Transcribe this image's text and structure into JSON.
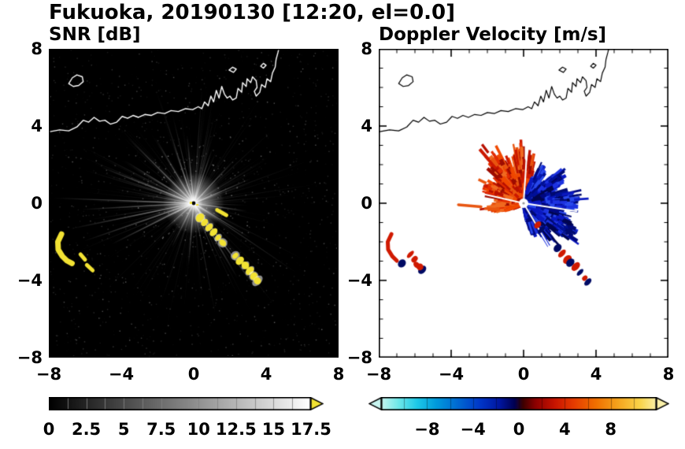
{
  "figure_title": "Fukuoka, 20190130 [12:20, el=0.0]",
  "panels": {
    "snr": {
      "title": "SNR [dB]",
      "x_tick_labels": [
        "−8",
        "−4",
        "0",
        "4",
        "8"
      ],
      "y_tick_labels": [
        "8",
        "4",
        "0",
        "−4",
        "−8"
      ],
      "colorbar_tick_labels": [
        "0",
        "2.5",
        "5",
        "7.5",
        "10",
        "12.5",
        "15",
        "17.5"
      ]
    },
    "doppler": {
      "title": "Doppler Velocity [m/s]",
      "x_tick_labels": [
        "−8",
        "−4",
        "0",
        "4",
        "8"
      ],
      "y_tick_labels": [
        "8",
        "4",
        "0",
        "−4",
        "−8"
      ],
      "colorbar_tick_labels": [
        "−8",
        "−4",
        "0",
        "4",
        "8"
      ]
    }
  },
  "chart_data": [
    {
      "type": "heatmap",
      "id": "snr",
      "title": "SNR [dB]",
      "xlabel": "",
      "ylabel": "",
      "xlim": [
        -8,
        8
      ],
      "ylim": [
        -8,
        8
      ],
      "xticks": [
        -8,
        -4,
        0,
        4,
        8
      ],
      "yticks": [
        -8,
        -4,
        0,
        4,
        8
      ],
      "minor_tick_step": 1,
      "background": "#000000",
      "coast_color": "#ffffff",
      "clutter_color": "#f2e233",
      "colorbar": {
        "min": 0,
        "max": 17.5,
        "ticks": [
          0,
          2.5,
          5,
          7.5,
          10,
          12.5,
          15,
          17.5
        ],
        "type": "grayscale",
        "start_color": "#000000",
        "end_color": "#ffffff",
        "over_arrow_color": "#f2e233",
        "segment_step": 1.25
      },
      "radar_center": [
        0,
        0
      ],
      "beam_fan": {
        "n_rays": 300,
        "len_min": 1.2,
        "len_max": 7.4,
        "alpha_min": 0.05,
        "alpha_max": 0.3,
        "sparse_sector": [
          215,
          275
        ],
        "bright_rays": [
          [
            178,
            7.8
          ],
          [
            183,
            6.2
          ],
          [
            191,
            7.0
          ],
          [
            198,
            6.4
          ],
          [
            205,
            5.0
          ],
          [
            160,
            5.4
          ],
          [
            150,
            4.4
          ],
          [
            137,
            5.0
          ],
          [
            122,
            4.0
          ],
          [
            110,
            3.4
          ],
          [
            96,
            3.6
          ],
          [
            70,
            3.0
          ],
          [
            45,
            3.2
          ],
          [
            22,
            3.4
          ],
          [
            -8,
            3.0
          ],
          [
            -30,
            3.6
          ],
          [
            -52,
            5.8
          ],
          [
            -58,
            4.6
          ],
          [
            -95,
            3.2
          ],
          [
            -118,
            2.6
          ],
          [
            -140,
            2.2
          ]
        ]
      },
      "yellow_arc": [
        [
          -7.3,
          -1.6
        ],
        [
          -7.5,
          -2.0
        ],
        [
          -7.48,
          -2.4
        ],
        [
          -7.25,
          -2.75
        ],
        [
          -7.0,
          -2.98
        ],
        [
          -6.72,
          -3.12
        ]
      ],
      "yellow_dashes": [
        [
          [
            -6.25,
            -2.65
          ],
          [
            -6.0,
            -2.92
          ]
        ],
        [
          [
            -5.9,
            -3.2
          ],
          [
            -5.58,
            -3.48
          ]
        ],
        [
          [
            1.3,
            -0.35
          ],
          [
            1.8,
            -0.62
          ]
        ]
      ],
      "yellow_chain": [
        [
          0.35,
          -0.75
        ],
        [
          0.6,
          -1.0
        ],
        [
          0.85,
          -1.25
        ],
        [
          1.1,
          -1.5
        ],
        [
          1.35,
          -1.78
        ],
        [
          1.6,
          -2.05
        ],
        [
          2.3,
          -2.72
        ],
        [
          2.55,
          -2.98
        ],
        [
          2.85,
          -3.22
        ],
        [
          3.1,
          -3.5
        ],
        [
          3.32,
          -3.78
        ],
        [
          3.52,
          -4.02
        ]
      ],
      "coastline": {
        "main": [
          [
            -8,
            3.7
          ],
          [
            -7.4,
            3.8
          ],
          [
            -6.9,
            3.75
          ],
          [
            -6.45,
            3.95
          ],
          [
            -6.1,
            4.3
          ],
          [
            -5.8,
            4.2
          ],
          [
            -5.5,
            4.45
          ],
          [
            -5.2,
            4.25
          ],
          [
            -4.9,
            4.3
          ],
          [
            -4.6,
            4.1
          ],
          [
            -4.25,
            4.2
          ],
          [
            -3.95,
            4.5
          ],
          [
            -3.65,
            4.4
          ],
          [
            -3.35,
            4.55
          ],
          [
            -3.05,
            4.45
          ],
          [
            -2.7,
            4.6
          ],
          [
            -2.35,
            4.55
          ],
          [
            -2.0,
            4.7
          ],
          [
            -1.6,
            4.65
          ],
          [
            -1.25,
            4.8
          ],
          [
            -0.85,
            4.75
          ],
          [
            -0.45,
            4.9
          ],
          [
            -0.05,
            4.85
          ],
          [
            0.25,
            5.0
          ],
          [
            0.45,
            4.9
          ],
          [
            0.6,
            5.25
          ],
          [
            0.8,
            5.05
          ],
          [
            0.95,
            5.55
          ],
          [
            1.1,
            5.25
          ],
          [
            1.25,
            5.85
          ],
          [
            1.4,
            5.45
          ],
          [
            1.55,
            6.05
          ],
          [
            1.7,
            5.65
          ],
          [
            1.85,
            5.45
          ],
          [
            2.0,
            5.55
          ],
          [
            2.15,
            5.35
          ],
          [
            2.35,
            5.45
          ],
          [
            2.45,
            5.95
          ],
          [
            2.65,
            5.75
          ],
          [
            2.7,
            6.25
          ],
          [
            2.9,
            6.05
          ],
          [
            2.95,
            6.45
          ],
          [
            3.15,
            6.25
          ],
          [
            3.25,
            6.55
          ],
          [
            3.45,
            6.35
          ],
          [
            3.5,
            6.0
          ],
          [
            3.35,
            5.8
          ],
          [
            3.45,
            5.55
          ],
          [
            3.65,
            5.75
          ],
          [
            3.75,
            6.15
          ],
          [
            3.95,
            6.0
          ],
          [
            4.05,
            6.45
          ],
          [
            4.25,
            6.3
          ],
          [
            4.35,
            6.75
          ],
          [
            4.5,
            7.05
          ],
          [
            4.55,
            7.45
          ],
          [
            4.65,
            7.8
          ],
          [
            4.7,
            8.0
          ]
        ],
        "island": [
          [
            -6.9,
            6.2
          ],
          [
            -6.7,
            6.5
          ],
          [
            -6.45,
            6.65
          ],
          [
            -6.15,
            6.55
          ],
          [
            -6.1,
            6.3
          ],
          [
            -6.35,
            6.1
          ],
          [
            -6.65,
            6.05
          ]
        ],
        "islets": [
          [
            [
              1.95,
              6.9
            ],
            [
              2.15,
              7.05
            ],
            [
              2.35,
              6.95
            ],
            [
              2.2,
              6.78
            ]
          ],
          [
            [
              3.7,
              7.1
            ],
            [
              3.85,
              7.25
            ],
            [
              4.0,
              7.15
            ],
            [
              3.85,
              7.0
            ]
          ]
        ]
      }
    },
    {
      "type": "heatmap",
      "id": "doppler",
      "title": "Doppler Velocity [m/s]",
      "xlabel": "",
      "ylabel": "",
      "xlim": [
        -8,
        8
      ],
      "ylim": [
        -8,
        8
      ],
      "xticks": [
        -8,
        -4,
        0,
        4,
        8
      ],
      "yticks": [
        -8,
        -4,
        0,
        4,
        8
      ],
      "minor_tick_step": 1,
      "background": "#ffffff",
      "coast_color": "#000000",
      "colorbar": {
        "min": -12,
        "max": 12,
        "ticks": [
          -8,
          -4,
          0,
          4,
          8
        ],
        "tick_step": 2,
        "under_arrow_color": "#c8f5f0",
        "over_arrow_color": "#faf0a8",
        "stops": [
          [
            0,
            "#c8f5f0"
          ],
          [
            0.06,
            "#72e9ea"
          ],
          [
            0.13,
            "#1ec9e8"
          ],
          [
            0.2,
            "#009adc"
          ],
          [
            0.28,
            "#0068d2"
          ],
          [
            0.36,
            "#0036c8"
          ],
          [
            0.43,
            "#0016a0"
          ],
          [
            0.485,
            "#000050"
          ],
          [
            0.515,
            "#3c0000"
          ],
          [
            0.56,
            "#8c0000"
          ],
          [
            0.63,
            "#c81400"
          ],
          [
            0.7,
            "#e63c00"
          ],
          [
            0.78,
            "#f07000"
          ],
          [
            0.86,
            "#f5a41e"
          ],
          [
            0.94,
            "#f8d44a"
          ],
          [
            1,
            "#faf0a8"
          ]
        ]
      },
      "radar_center": [
        0,
        0
      ],
      "red_fan": {
        "seed": 2024,
        "n": 1050,
        "a0": 72,
        "a1": 208,
        "lobes": [
          [
            80,
            9,
            2.35
          ],
          [
            96,
            14,
            2.65
          ],
          [
            125,
            22,
            2.85
          ],
          [
            158,
            18,
            2.2
          ],
          [
            188,
            13,
            1.7
          ]
        ],
        "colors": [
          "#cc1800",
          "#e32c00",
          "#f04800",
          "#b81000",
          "#f06a20",
          "#9e0c00",
          "#e85510"
        ]
      },
      "blue_fan": {
        "seed": 777,
        "n": 1100,
        "a0": -78,
        "a1": 72,
        "lobes": [
          [
            60,
            12,
            2.0
          ],
          [
            32,
            17,
            2.5
          ],
          [
            2,
            20,
            3.0
          ],
          [
            -28,
            18,
            3.15
          ],
          [
            -52,
            13,
            2.3
          ],
          [
            -70,
            9,
            1.6
          ]
        ],
        "colors": [
          "#0a18c0",
          "#001098",
          "#000a70",
          "#1c32e0",
          "#000550",
          "#2848ec",
          "#000880"
        ]
      },
      "gap_rays": [
        [
          168,
          2.6
        ],
        [
          86,
          2.4
        ],
        [
          -8,
          3.0
        ],
        [
          -58,
          3.4
        ]
      ],
      "west_streaks": [
        [
          [
            -3.6,
            -0.08
          ],
          [
            -2.35,
            -0.18
          ]
        ],
        [
          [
            -2.1,
            -0.28
          ],
          [
            -1.4,
            -0.32
          ]
        ]
      ],
      "west_streak_color": "#e85510",
      "sw_red_arc": [
        [
          -7.3,
          -1.6
        ],
        [
          -7.5,
          -2.0
        ],
        [
          -7.48,
          -2.4
        ],
        [
          -7.25,
          -2.75
        ],
        [
          -7.0,
          -2.98
        ]
      ],
      "sw_blobs": [
        [
          -6.72,
          -3.12,
          "navy"
        ],
        [
          -6.25,
          -2.65,
          "red"
        ],
        [
          -6.02,
          -2.9,
          "red"
        ],
        [
          -5.9,
          -3.2,
          "red"
        ],
        [
          -5.6,
          -3.45,
          "navy"
        ],
        [
          -5.72,
          -3.3,
          "red"
        ]
      ],
      "chain_blobs": [
        [
          0.78,
          -1.12,
          "red"
        ],
        [
          0.98,
          -1.38,
          "navy"
        ],
        [
          1.88,
          -2.32,
          "navy"
        ],
        [
          2.12,
          -2.6,
          "red"
        ],
        [
          2.42,
          -2.92,
          "red"
        ],
        [
          2.58,
          -3.08,
          "navy"
        ],
        [
          2.88,
          -3.28,
          "red"
        ],
        [
          3.12,
          -3.58,
          "navy"
        ],
        [
          3.38,
          -3.88,
          "red"
        ],
        [
          3.55,
          -4.08,
          "navy"
        ]
      ],
      "blob_colors": {
        "red": "#d01a00",
        "navy": "#000a64"
      }
    }
  ]
}
